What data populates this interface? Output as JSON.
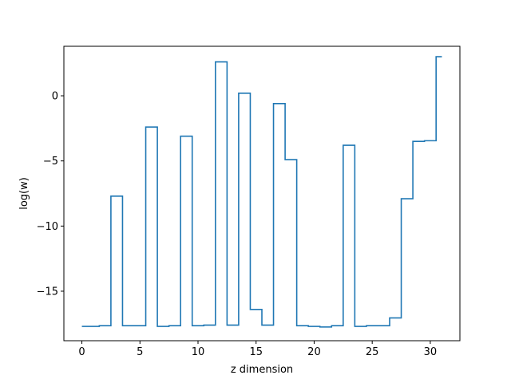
{
  "chart_data": {
    "type": "line",
    "drawstyle": "steps-mid",
    "xlabel": "z dimension",
    "ylabel": "log(w)",
    "xlim": [
      -1.55,
      32.55
    ],
    "ylim": [
      -18.8,
      3.8
    ],
    "xticks": [
      0,
      5,
      10,
      15,
      20,
      25,
      30
    ],
    "yticks": [
      0,
      -5,
      -10,
      -15
    ],
    "xtick_labels": [
      "0",
      "5",
      "10",
      "15",
      "20",
      "25",
      "30"
    ],
    "ytick_labels": [
      "0",
      "−5",
      "−10",
      "−15"
    ],
    "grid": false,
    "series": [
      {
        "color": "#1f77b4",
        "x": [
          0,
          1,
          2,
          3,
          4,
          5,
          6,
          7,
          8,
          9,
          10,
          11,
          12,
          13,
          14,
          15,
          16,
          17,
          18,
          19,
          20,
          21,
          22,
          23,
          24,
          25,
          26,
          27,
          28,
          29,
          30,
          31
        ],
        "y": [
          -17.7,
          -17.7,
          -17.65,
          -7.7,
          -17.65,
          -17.65,
          -2.4,
          -17.7,
          -17.65,
          -3.1,
          -17.65,
          -17.6,
          2.6,
          -17.6,
          0.2,
          -16.4,
          -17.6,
          -0.6,
          -4.9,
          -17.65,
          -17.7,
          -17.75,
          -17.65,
          -3.8,
          -17.7,
          -17.65,
          -17.65,
          -17.05,
          -7.9,
          -3.5,
          -3.45,
          3.0
        ]
      }
    ]
  }
}
